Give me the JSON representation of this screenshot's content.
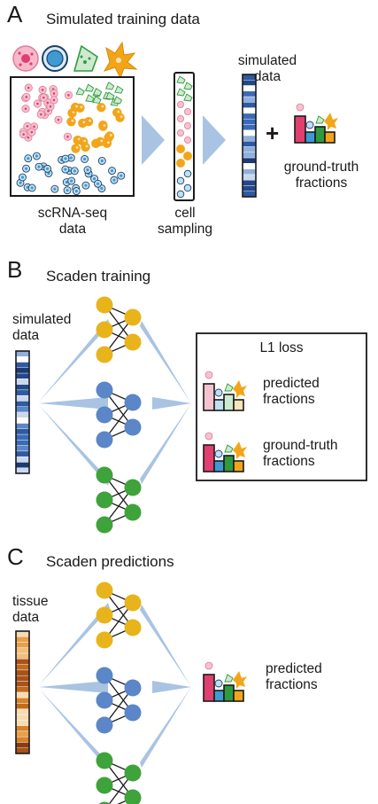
{
  "panel_a": {
    "letter": "A",
    "title": "Simulated training data",
    "scrna_label_1": "scRNA-seq",
    "scrna_label_2": "data",
    "sampling_label_1": "cell",
    "sampling_label_2": "sampling",
    "simulated_label_1": "simulated",
    "simulated_label_2": "data",
    "plus": "+",
    "gt_label_1": "ground-truth",
    "gt_label_2": "fractions"
  },
  "panel_b": {
    "letter": "B",
    "title": "Scaden training",
    "simulated_label_1": "simulated",
    "simulated_label_2": "data",
    "loss_title": "L1 loss",
    "pred_label_1": "predicted",
    "pred_label_2": "fractions",
    "gt_label_1": "ground-truth",
    "gt_label_2": "fractions"
  },
  "panel_c": {
    "letter": "C",
    "title": "Scaden predictions",
    "tissue_label_1": "tissue",
    "tissue_label_2": "data",
    "pred_label_1": "predicted",
    "pred_label_2": "fractions"
  },
  "colors": {
    "pink": "#e03f6f",
    "pink_light": "#f5c2cf",
    "blue": "#3e9ad3",
    "blue_light": "#bfe0f2",
    "green": "#2f9a3e",
    "green_light": "#cdeacf",
    "orange": "#f3a51a",
    "orange_light": "#fbe4b6",
    "node_yellow": "#e8b41c",
    "node_blue": "#5b86c7",
    "node_green": "#3ea33a",
    "arrow": "#a9c3e3",
    "vector_blue": "#2a4f8f",
    "vector_orange": "#c36a1b"
  }
}
